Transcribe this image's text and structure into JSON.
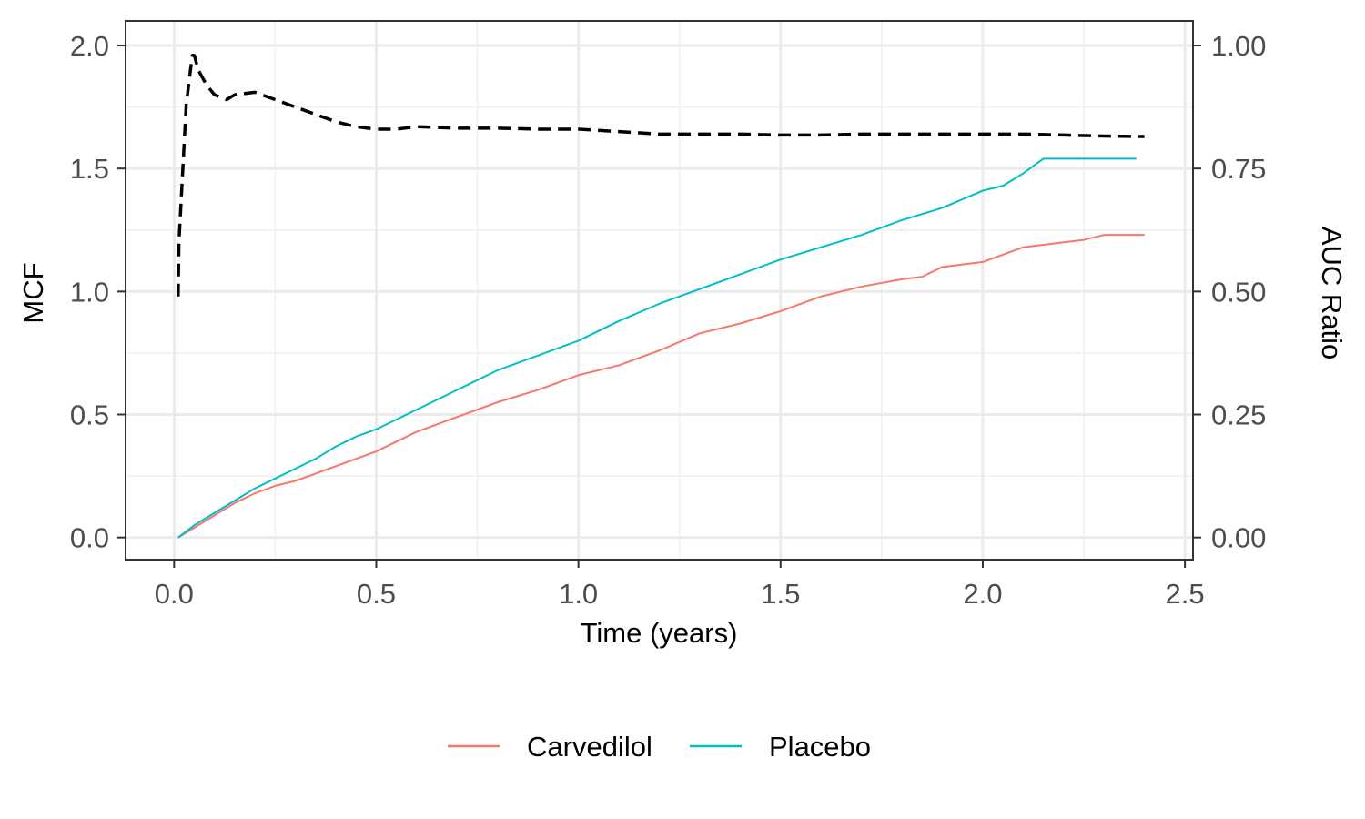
{
  "chart_data": {
    "type": "line",
    "xlabel": "Time (years)",
    "ylabel": "MCF",
    "y2label": "AUC Ratio",
    "xlim": [
      -0.12,
      2.52
    ],
    "ylim": [
      -0.09,
      2.1
    ],
    "y2lim": [
      -0.045,
      1.05
    ],
    "x_ticks": [
      0.0,
      0.5,
      1.0,
      1.5,
      2.0,
      2.5
    ],
    "x_tick_labels": [
      "0.0",
      "0.5",
      "1.0",
      "1.5",
      "2.0",
      "2.5"
    ],
    "y_ticks": [
      0.0,
      0.5,
      1.0,
      1.5,
      2.0
    ],
    "y_tick_labels": [
      "0.0",
      "0.5",
      "1.0",
      "1.5",
      "2.0"
    ],
    "y2_ticks": [
      0.0,
      0.25,
      0.5,
      0.75,
      1.0
    ],
    "y2_tick_labels": [
      "0.00",
      "0.25",
      "0.50",
      "0.75",
      "1.00"
    ],
    "grid": true,
    "legend_position": "bottom",
    "series": [
      {
        "name": "Carvedilol",
        "color": "#F8766D",
        "style": "solid",
        "axis": "left",
        "x": [
          0.01,
          0.05,
          0.1,
          0.15,
          0.2,
          0.25,
          0.3,
          0.35,
          0.4,
          0.45,
          0.5,
          0.6,
          0.7,
          0.8,
          0.9,
          1.0,
          1.1,
          1.2,
          1.3,
          1.4,
          1.5,
          1.6,
          1.7,
          1.8,
          1.85,
          1.9,
          1.95,
          2.0,
          2.05,
          2.1,
          2.15,
          2.2,
          2.25,
          2.3,
          2.35,
          2.4
        ],
        "y": [
          0.0,
          0.04,
          0.09,
          0.14,
          0.18,
          0.21,
          0.23,
          0.26,
          0.29,
          0.32,
          0.35,
          0.43,
          0.49,
          0.55,
          0.6,
          0.66,
          0.7,
          0.76,
          0.83,
          0.87,
          0.92,
          0.98,
          1.02,
          1.05,
          1.06,
          1.1,
          1.11,
          1.12,
          1.15,
          1.18,
          1.19,
          1.2,
          1.21,
          1.23,
          1.23,
          1.23
        ]
      },
      {
        "name": "Placebo",
        "color": "#00BFC4",
        "style": "solid",
        "axis": "left",
        "x": [
          0.01,
          0.05,
          0.1,
          0.15,
          0.2,
          0.25,
          0.3,
          0.35,
          0.4,
          0.45,
          0.5,
          0.6,
          0.7,
          0.8,
          0.9,
          1.0,
          1.1,
          1.2,
          1.3,
          1.4,
          1.5,
          1.6,
          1.7,
          1.8,
          1.9,
          2.0,
          2.05,
          2.1,
          2.15,
          2.2,
          2.25,
          2.3,
          2.35,
          2.38
        ],
        "y": [
          0.0,
          0.05,
          0.1,
          0.15,
          0.2,
          0.24,
          0.28,
          0.32,
          0.37,
          0.41,
          0.44,
          0.52,
          0.6,
          0.68,
          0.74,
          0.8,
          0.88,
          0.95,
          1.01,
          1.07,
          1.13,
          1.18,
          1.23,
          1.29,
          1.34,
          1.41,
          1.43,
          1.48,
          1.54,
          1.54,
          1.54,
          1.54,
          1.54,
          1.54
        ]
      },
      {
        "name": "",
        "color": "#000000",
        "style": "dashed",
        "axis": "right",
        "x": [
          0.01,
          0.012,
          0.03,
          0.045,
          0.05,
          0.06,
          0.08,
          0.1,
          0.13,
          0.15,
          0.2,
          0.25,
          0.3,
          0.35,
          0.4,
          0.45,
          0.5,
          0.55,
          0.6,
          0.7,
          0.8,
          0.9,
          1.0,
          1.1,
          1.2,
          1.3,
          1.4,
          1.5,
          1.6,
          1.7,
          1.8,
          1.9,
          2.0,
          2.1,
          2.2,
          2.3,
          2.4
        ],
        "y": [
          0.49,
          0.6,
          0.88,
          0.98,
          0.98,
          0.95,
          0.92,
          0.9,
          0.89,
          0.9,
          0.905,
          0.89,
          0.875,
          0.86,
          0.845,
          0.835,
          0.83,
          0.83,
          0.835,
          0.832,
          0.832,
          0.83,
          0.83,
          0.825,
          0.82,
          0.82,
          0.82,
          0.818,
          0.818,
          0.82,
          0.82,
          0.82,
          0.82,
          0.82,
          0.818,
          0.816,
          0.815
        ]
      }
    ]
  }
}
